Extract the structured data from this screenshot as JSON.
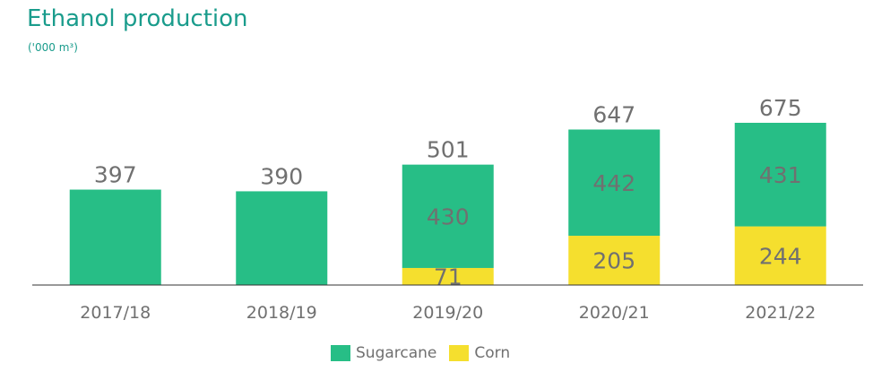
{
  "chart_data": {
    "type": "bar",
    "stacked": true,
    "title": "Ethanol production",
    "subtitle": "('000 m³)",
    "categories": [
      "2017/18",
      "2018/19",
      "2019/20",
      "2020/21",
      "2021/22"
    ],
    "series": [
      {
        "name": "Corn",
        "values": [
          null,
          null,
          71,
          205,
          244
        ],
        "color": "#f5df2e"
      },
      {
        "name": "Sugarcane",
        "values": [
          397,
          390,
          430,
          442,
          431
        ],
        "color": "#27be86"
      }
    ],
    "totals": [
      397,
      390,
      501,
      647,
      675
    ],
    "show_totals": [
      true,
      true,
      true,
      true,
      true
    ],
    "show_segment_labels": true,
    "grid": false,
    "legend_position": "bottom",
    "text_color": "#707070",
    "title_color": "#1a9c8c"
  }
}
